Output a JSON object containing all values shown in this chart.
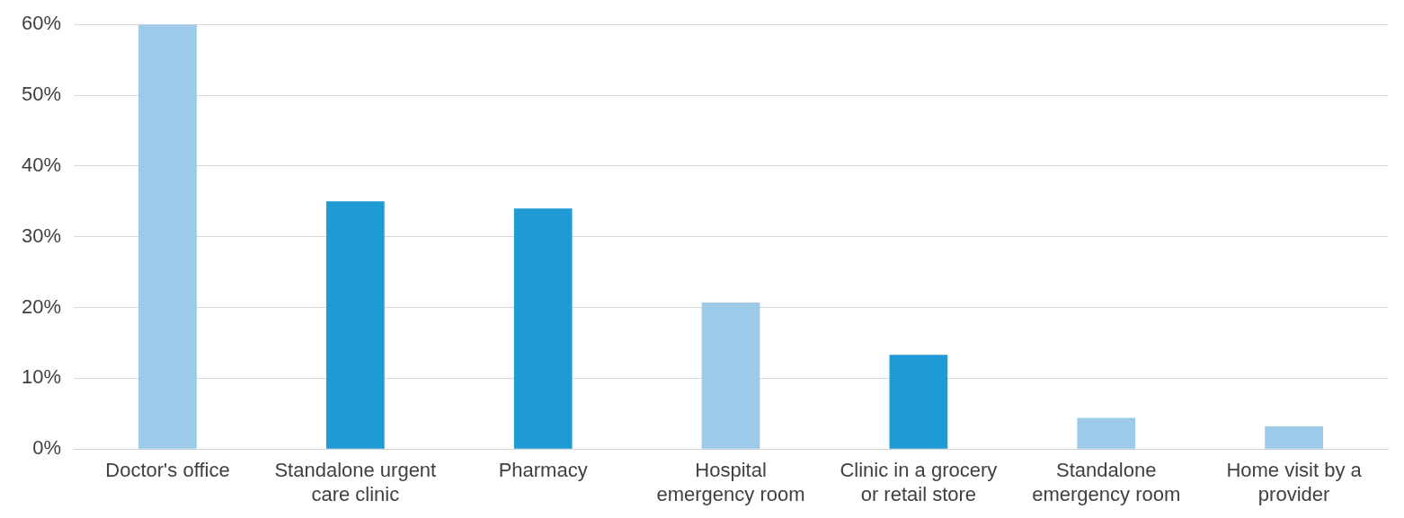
{
  "chart_data": {
    "type": "bar",
    "categories": [
      "Doctor's office",
      "Standalone urgent care clinic",
      "Pharmacy",
      "Hospital emergency room",
      "Clinic in a grocery or retail store",
      "Standalone emergency room",
      "Home visit by a provider"
    ],
    "values": [
      60,
      35,
      34,
      20.7,
      13.3,
      4.4,
      3.2
    ],
    "colors": [
      "#9ccae8",
      "#1e9ad4",
      "#1e9ad4",
      "#9ccae8",
      "#1e9ad4",
      "#9ccae8",
      "#9ccae8"
    ],
    "ylim": [
      0,
      60
    ],
    "yticks": [
      {
        "value": 0,
        "label": "0%"
      },
      {
        "value": 10,
        "label": "10%"
      },
      {
        "value": 20,
        "label": "20%"
      },
      {
        "value": 30,
        "label": "30%"
      },
      {
        "value": 40,
        "label": "40%"
      },
      {
        "value": 50,
        "label": "50%"
      },
      {
        "value": 60,
        "label": "60%"
      }
    ],
    "grid": "y",
    "legend": false
  }
}
